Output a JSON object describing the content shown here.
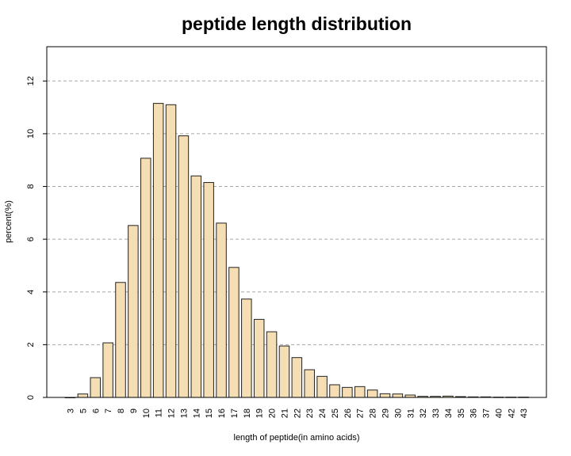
{
  "chart_data": {
    "type": "bar",
    "title": "peptide length distribution",
    "xlabel": "length of peptide(in amino acids)",
    "ylabel": "percent(%)",
    "ylim": [
      0,
      13.3
    ],
    "yticks": [
      0,
      2,
      4,
      6,
      8,
      10,
      12
    ],
    "grid": "horizontal dashed",
    "bar_color": "#f5deb3",
    "categories": [
      "3",
      "5",
      "6",
      "7",
      "8",
      "9",
      "10",
      "11",
      "12",
      "13",
      "14",
      "15",
      "16",
      "17",
      "18",
      "19",
      "20",
      "21",
      "22",
      "23",
      "24",
      "25",
      "26",
      "27",
      "28",
      "29",
      "30",
      "31",
      "32",
      "33",
      "34",
      "35",
      "36",
      "37",
      "40",
      "42",
      "43"
    ],
    "values": [
      0.0,
      0.13,
      0.75,
      2.07,
      4.36,
      6.52,
      9.07,
      11.15,
      11.1,
      9.92,
      8.4,
      8.15,
      6.61,
      4.93,
      3.73,
      2.96,
      2.49,
      1.95,
      1.51,
      1.05,
      0.8,
      0.48,
      0.38,
      0.41,
      0.28,
      0.14,
      0.13,
      0.09,
      0.04,
      0.04,
      0.05,
      0.03,
      0.02,
      0.02,
      0.01,
      0.01,
      0.01
    ]
  }
}
